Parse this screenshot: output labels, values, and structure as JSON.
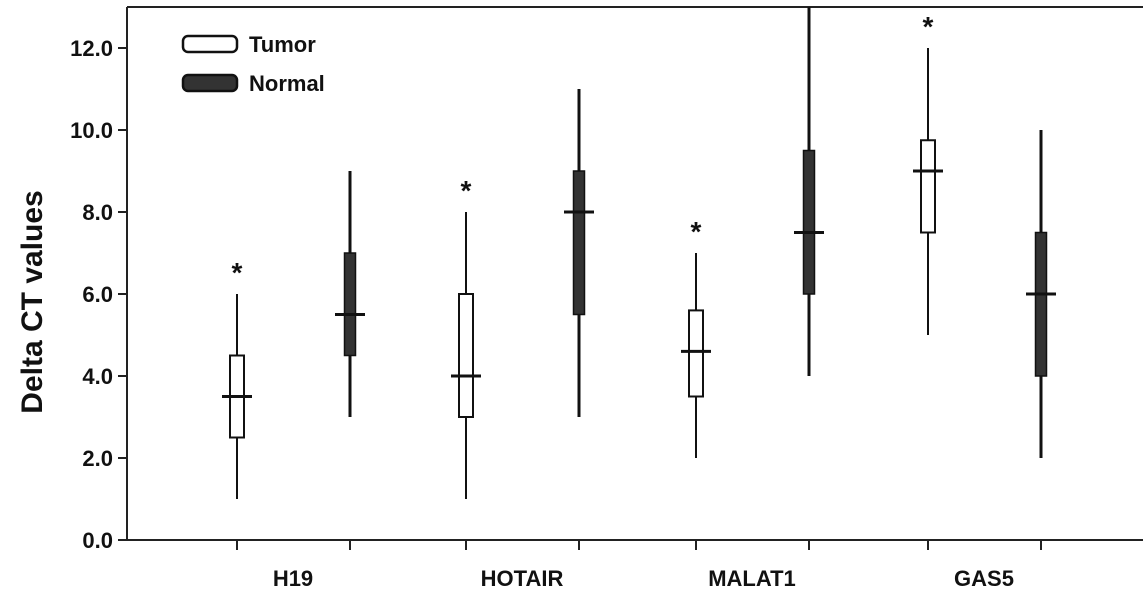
{
  "chart_data": {
    "type": "box",
    "ylabel": "Delta CT values",
    "xlabel": "",
    "ylim": [
      0,
      13
    ],
    "yticks": [
      0,
      2,
      4,
      6,
      8,
      10,
      12
    ],
    "ytick_labels": [
      "0.0",
      "2.0",
      "4.0",
      "6.0",
      "8.0",
      "10.0",
      "12.0"
    ],
    "categories": [
      "H19",
      "HOTAIR",
      "MALAT1",
      "GAS5"
    ],
    "legend": {
      "placement": "top-left",
      "entries": [
        "Tumor",
        "Normal"
      ]
    },
    "series": [
      {
        "name": "Tumor",
        "color": "#ffffff",
        "boxes": [
          {
            "min": 1.0,
            "q1": 2.5,
            "median": 3.5,
            "q3": 4.5,
            "max": 6.0,
            "annotation": "*"
          },
          {
            "min": 1.0,
            "q1": 3.0,
            "median": 4.0,
            "q3": 6.0,
            "max": 8.0,
            "annotation": "*"
          },
          {
            "min": 2.0,
            "q1": 3.5,
            "median": 4.6,
            "q3": 5.6,
            "max": 7.0,
            "annotation": "*"
          },
          {
            "min": 5.0,
            "q1": 7.5,
            "median": 9.0,
            "q3": 9.75,
            "max": 12.0,
            "annotation": "*"
          }
        ]
      },
      {
        "name": "Normal",
        "color": "#333333",
        "boxes": [
          {
            "min": 3.0,
            "q1": 4.5,
            "median": 5.5,
            "q3": 7.0,
            "max": 9.0
          },
          {
            "min": 3.0,
            "q1": 5.5,
            "median": 8.0,
            "q3": 9.0,
            "max": 11.0
          },
          {
            "min": 4.0,
            "q1": 6.0,
            "median": 7.5,
            "q3": 9.5,
            "max": 13.0
          },
          {
            "min": 2.0,
            "q1": 4.0,
            "median": 6.0,
            "q3": 7.5,
            "max": 10.0
          }
        ]
      }
    ]
  }
}
